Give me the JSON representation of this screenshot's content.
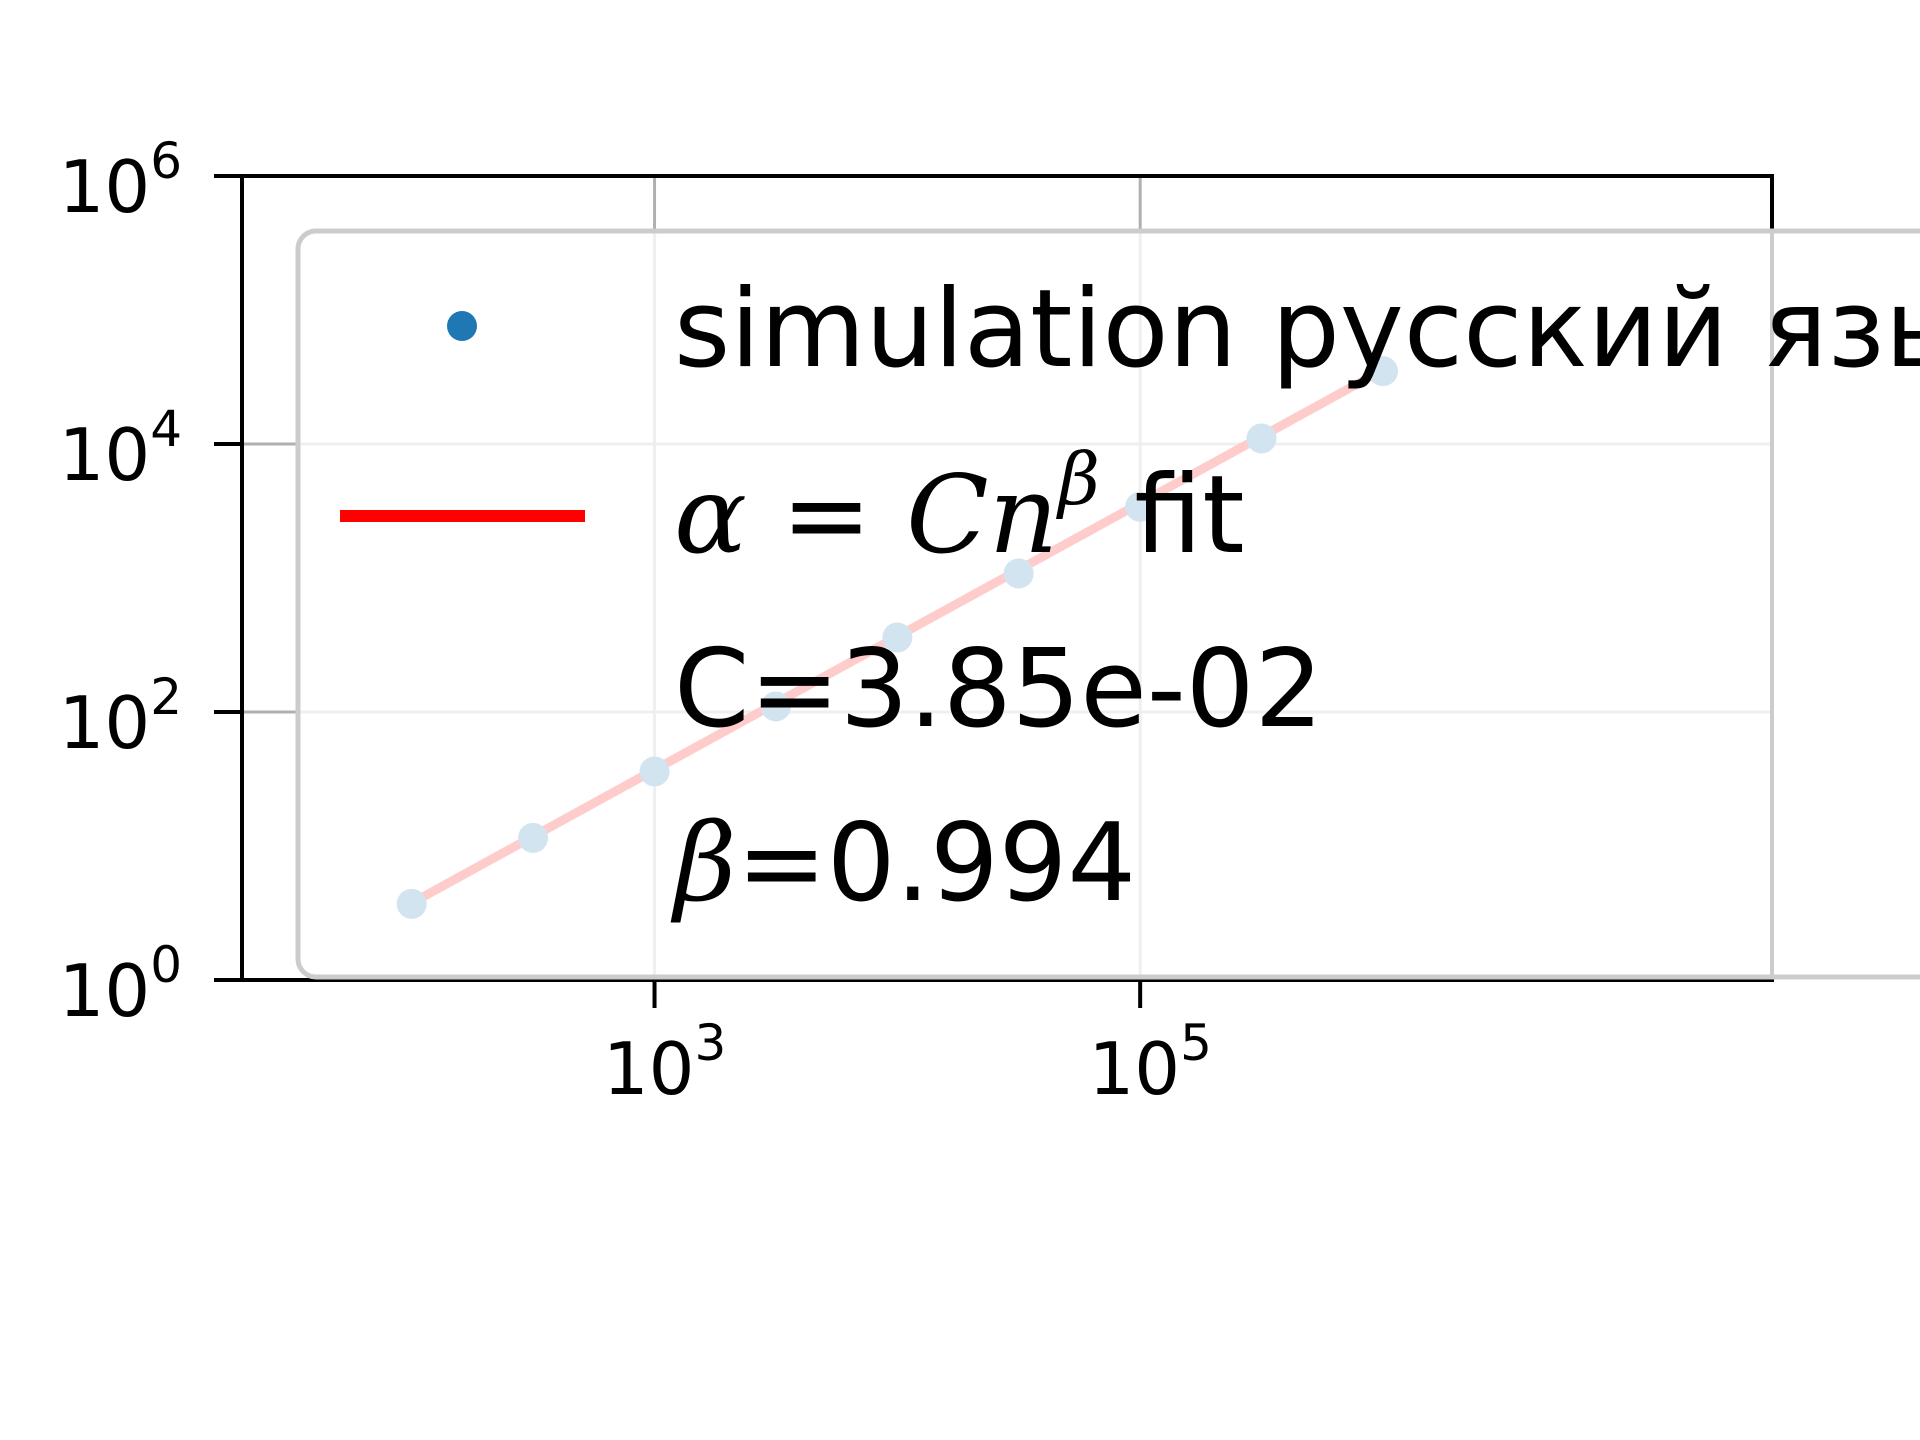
{
  "chart_data": {
    "type": "scatter",
    "x_scale": "log",
    "y_scale": "log",
    "xlim": [
      20,
      40000000
    ],
    "ylim": [
      1,
      1000000
    ],
    "grid": true,
    "legend_position": "upper-left",
    "x_ticks": [
      {
        "value": 1000,
        "base": "10",
        "exp": "3"
      },
      {
        "value": 100000,
        "base": "10",
        "exp": "5"
      }
    ],
    "y_ticks": [
      {
        "value": 1,
        "base": "10",
        "exp": "0"
      },
      {
        "value": 100,
        "base": "10",
        "exp": "2"
      },
      {
        "value": 10000,
        "base": "10",
        "exp": "4"
      },
      {
        "value": 1000000,
        "base": "10",
        "exp": "6"
      }
    ],
    "series": [
      {
        "name": "simulation русский язык",
        "kind": "scatter",
        "color": "#1f77b4",
        "x": [
          100,
          316,
          1000,
          3160,
          10000,
          31600,
          100000,
          316000,
          1000000
        ],
        "y": [
          3.7,
          11.5,
          36,
          110,
          360,
          1080,
          3400,
          11000,
          35000
        ]
      },
      {
        "name": "α = Cnβ fit",
        "kind": "line",
        "color": "#ff0000",
        "x": [
          100,
          1000000
        ],
        "y": [
          3.75,
          35800
        ]
      }
    ],
    "legend": {
      "scatter_label": "simulation русский язык",
      "fit_label_alpha": "α",
      "fit_label_eq": " = ",
      "fit_label_C": "C",
      "fit_label_n": "n",
      "fit_label_beta": "β",
      "fit_label_suffix": " fit",
      "c_text": "C=3.85e-02",
      "beta_symbol": "β",
      "beta_text": "=0.994"
    }
  }
}
